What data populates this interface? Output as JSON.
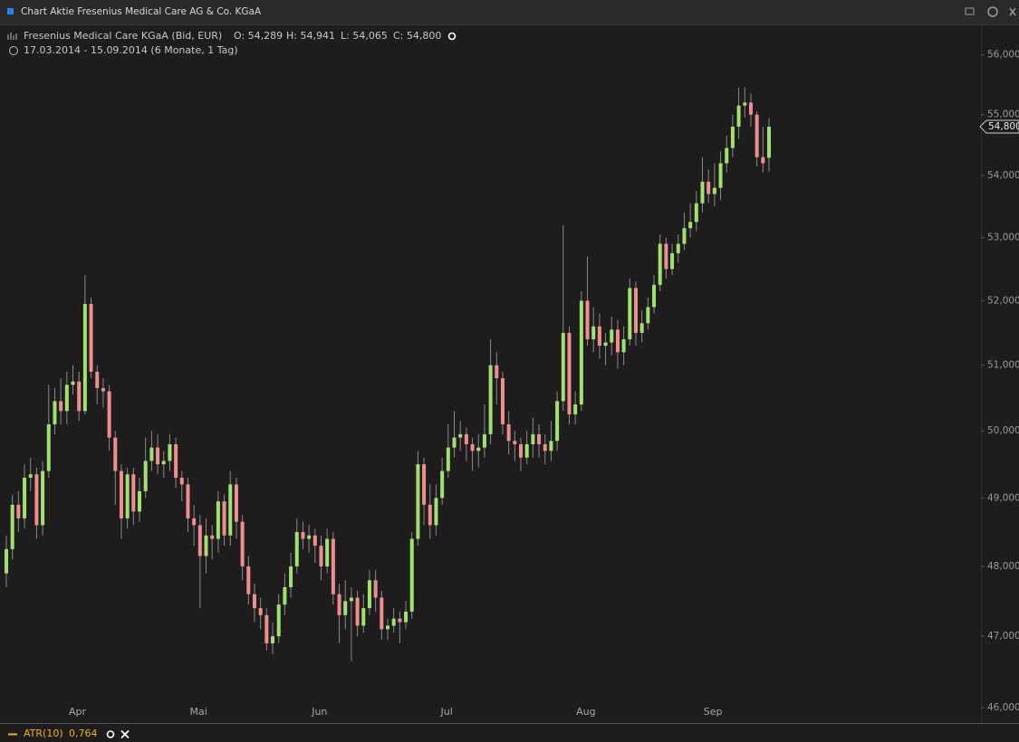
{
  "window": {
    "title": "Chart Aktie Fresenius Medical Care AG & Co. KGaA"
  },
  "legend": {
    "instrument": "Fresenius Medical Care KGaA (Bid, EUR)",
    "open": "O: 54,289",
    "high": "H: 54,941",
    "low": "L: 54,065",
    "close": "C: 54,800",
    "range": "17.03.2014 - 15.09.2014 (6 Monate, 1 Tag)"
  },
  "last_price_label": "54,800",
  "indicator": {
    "name": "ATR(10)",
    "value": "0,764"
  },
  "chart_data": {
    "type": "candlestick",
    "log_scale": true,
    "up_color": "#9fe36e",
    "down_color": "#f08e8e",
    "wick_color": "#8a8a8a",
    "categories": [
      null,
      null,
      null,
      null,
      null,
      null,
      null,
      null,
      null,
      null,
      null,
      "Apr",
      null,
      null,
      null,
      null,
      null,
      null,
      null,
      null,
      null,
      null,
      null,
      null,
      null,
      null,
      null,
      null,
      null,
      null,
      null,
      "Mai",
      null,
      null,
      null,
      null,
      null,
      null,
      null,
      null,
      null,
      null,
      null,
      null,
      null,
      null,
      null,
      null,
      null,
      null,
      null,
      "Jun",
      null,
      null,
      null,
      null,
      null,
      null,
      null,
      null,
      null,
      null,
      null,
      null,
      null,
      null,
      null,
      null,
      null,
      null,
      null,
      null,
      "Jul",
      null,
      null,
      null,
      null,
      null,
      null,
      null,
      null,
      null,
      null,
      null,
      null,
      null,
      null,
      null,
      null,
      null,
      null,
      null,
      null,
      null,
      null,
      "Aug",
      null,
      null,
      null,
      null,
      null,
      null,
      null,
      null,
      null,
      null,
      null,
      null,
      null,
      null,
      null,
      null,
      null,
      null,
      null,
      null,
      "Sep",
      null,
      null,
      null,
      null,
      null,
      null,
      null,
      null,
      null,
      null
    ],
    "open": [
      47.9,
      48.25,
      48.9,
      48.7,
      49.3,
      49.35,
      48.6,
      49.4,
      50.1,
      50.45,
      50.3,
      50.7,
      50.75,
      50.3,
      51.95,
      50.9,
      50.65,
      50.6,
      49.9,
      49.4,
      48.7,
      49.35,
      48.8,
      49.1,
      49.55,
      49.75,
      49.5,
      49.55,
      49.8,
      49.3,
      49.2,
      48.7,
      48.6,
      48.15,
      48.45,
      48.4,
      48.95,
      48.45,
      49.2,
      48.65,
      48.0,
      47.6,
      47.4,
      47.3,
      46.9,
      47.0,
      47.45,
      47.7,
      48.0,
      48.5,
      48.4,
      48.45,
      48.3,
      48.0,
      48.4,
      47.6,
      47.3,
      47.5,
      47.55,
      47.15,
      47.4,
      47.8,
      47.55,
      47.1,
      47.15,
      47.25,
      47.2,
      47.35,
      48.4,
      49.5,
      48.9,
      48.6,
      49.0,
      49.4,
      49.75,
      49.9,
      49.95,
      49.8,
      49.7,
      49.75,
      49.95,
      51.0,
      50.8,
      50.1,
      49.85,
      49.8,
      49.6,
      49.8,
      49.95,
      49.8,
      49.7,
      49.85,
      50.45,
      51.5,
      50.25,
      50.4,
      52.0,
      51.4,
      51.6,
      51.3,
      51.35,
      51.55,
      51.2,
      51.4,
      52.2,
      51.5,
      51.65,
      51.9,
      52.25,
      52.9,
      52.5,
      52.75,
      52.9,
      53.15,
      53.25,
      53.55,
      53.9,
      53.7,
      53.8,
      54.2,
      54.45,
      54.8,
      55.15,
      55.2,
      55.0,
      54.3,
      54.289
    ],
    "high": [
      48.45,
      49.05,
      49.1,
      49.5,
      49.6,
      49.45,
      49.55,
      50.7,
      50.65,
      50.8,
      50.9,
      51.0,
      50.9,
      52.4,
      52.05,
      51.0,
      50.8,
      50.7,
      50.0,
      49.5,
      49.45,
      49.45,
      49.3,
      49.9,
      50.0,
      49.95,
      49.7,
      49.95,
      49.9,
      49.4,
      49.3,
      48.9,
      48.75,
      48.7,
      48.6,
      49.1,
      49.05,
      49.4,
      49.3,
      48.75,
      48.15,
      47.75,
      47.55,
      47.4,
      47.2,
      47.6,
      47.9,
      48.2,
      48.7,
      48.65,
      48.6,
      48.55,
      48.45,
      48.55,
      48.5,
      47.75,
      47.8,
      47.7,
      47.65,
      47.6,
      47.95,
      47.95,
      47.65,
      47.25,
      47.4,
      47.35,
      47.5,
      48.5,
      49.7,
      49.6,
      49.2,
      49.2,
      49.6,
      50.1,
      50.3,
      50.15,
      50.05,
      49.9,
      49.95,
      50.4,
      51.4,
      51.2,
      50.9,
      50.3,
      50.0,
      49.9,
      50.0,
      50.2,
      50.1,
      49.95,
      50.15,
      50.6,
      53.2,
      51.6,
      50.6,
      52.15,
      52.7,
      51.9,
      51.8,
      51.5,
      51.75,
      51.7,
      51.6,
      52.35,
      52.3,
      51.85,
      52.05,
      52.4,
      53.05,
      53.0,
      52.9,
      53.05,
      53.4,
      53.55,
      53.75,
      54.3,
      54.1,
      54.2,
      54.4,
      54.65,
      55.0,
      55.45,
      55.45,
      55.35,
      55.05,
      54.8,
      54.941
    ],
    "low": [
      47.7,
      48.1,
      48.5,
      48.55,
      49.1,
      48.4,
      48.45,
      49.3,
      49.95,
      50.1,
      50.1,
      50.55,
      50.15,
      50.25,
      50.8,
      50.4,
      50.35,
      49.7,
      48.9,
      48.4,
      48.55,
      48.6,
      48.65,
      49.0,
      49.4,
      49.35,
      49.3,
      49.4,
      49.15,
      48.95,
      48.5,
      48.3,
      47.4,
      47.9,
      48.1,
      48.2,
      48.3,
      48.3,
      48.4,
      47.8,
      47.45,
      47.2,
      47.1,
      46.8,
      46.75,
      46.9,
      47.3,
      47.55,
      47.9,
      48.25,
      48.2,
      48.05,
      47.8,
      47.9,
      47.45,
      46.9,
      47.1,
      46.65,
      47.0,
      47.05,
      47.3,
      47.35,
      46.95,
      46.95,
      47.05,
      46.9,
      47.1,
      47.25,
      48.3,
      48.6,
      48.4,
      48.45,
      48.9,
      49.3,
      49.6,
      49.7,
      49.55,
      49.4,
      49.45,
      49.6,
      49.8,
      50.4,
      49.95,
      49.65,
      49.55,
      49.4,
      49.5,
      49.6,
      49.6,
      49.5,
      49.55,
      49.7,
      50.3,
      50.1,
      50.1,
      50.3,
      51.3,
      51.2,
      51.1,
      51.0,
      51.15,
      50.95,
      51.0,
      51.3,
      51.3,
      51.35,
      51.55,
      51.8,
      52.15,
      52.35,
      52.4,
      52.6,
      52.8,
      53.0,
      53.1,
      53.4,
      53.55,
      53.5,
      53.6,
      54.05,
      54.3,
      54.6,
      54.95,
      54.8,
      54.15,
      54.05,
      54.065
    ],
    "close": [
      48.25,
      48.9,
      48.7,
      49.3,
      49.35,
      48.6,
      49.4,
      50.1,
      50.45,
      50.3,
      50.7,
      50.75,
      50.3,
      51.95,
      50.9,
      50.65,
      50.6,
      49.9,
      49.4,
      48.7,
      49.35,
      48.8,
      49.1,
      49.55,
      49.75,
      49.5,
      49.55,
      49.8,
      49.3,
      49.2,
      48.7,
      48.6,
      48.15,
      48.45,
      48.4,
      48.95,
      48.45,
      49.2,
      48.65,
      48.0,
      47.6,
      47.4,
      47.3,
      46.9,
      47.0,
      47.45,
      47.7,
      48.0,
      48.5,
      48.4,
      48.45,
      48.3,
      48.0,
      48.4,
      47.6,
      47.3,
      47.5,
      47.55,
      47.15,
      47.4,
      47.8,
      47.55,
      47.1,
      47.15,
      47.25,
      47.2,
      47.35,
      48.4,
      49.5,
      48.9,
      48.6,
      49.0,
      49.4,
      49.75,
      49.9,
      49.95,
      49.8,
      49.7,
      49.75,
      49.95,
      51.0,
      50.8,
      50.1,
      49.85,
      49.8,
      49.6,
      49.8,
      49.95,
      49.8,
      49.7,
      49.85,
      50.45,
      51.5,
      50.25,
      50.4,
      52.0,
      51.4,
      51.6,
      51.3,
      51.35,
      51.55,
      51.2,
      51.4,
      52.2,
      51.5,
      51.65,
      51.9,
      52.25,
      52.9,
      52.5,
      52.75,
      52.9,
      53.15,
      53.25,
      53.55,
      53.9,
      53.7,
      53.8,
      54.2,
      54.45,
      54.8,
      55.15,
      55.2,
      55.0,
      54.3,
      54.2,
      54.8
    ],
    "ylim": [
      45.8,
      56.5
    ],
    "yticks": [
      {
        "value": 46,
        "label": "46,000"
      },
      {
        "value": 47,
        "label": "47,000"
      },
      {
        "value": 48,
        "label": "48,000"
      },
      {
        "value": 49,
        "label": "49,000"
      },
      {
        "value": 50,
        "label": "50,000"
      },
      {
        "value": 51,
        "label": "51,000"
      },
      {
        "value": 52,
        "label": "52,000"
      },
      {
        "value": 53,
        "label": "53,000"
      },
      {
        "value": 54,
        "label": "54,000"
      },
      {
        "value": 55,
        "label": "55,000"
      },
      {
        "value": 56,
        "label": "56,000"
      }
    ]
  }
}
